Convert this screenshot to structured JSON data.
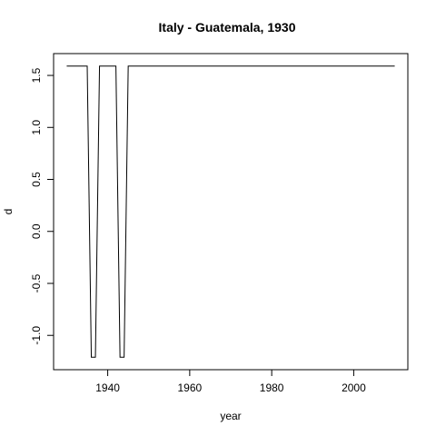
{
  "chart_data": {
    "type": "line",
    "title": "Italy - Guatemala, 1930",
    "xlabel": "year",
    "ylabel": "d",
    "xlim": [
      1926.8,
      2013.2
    ],
    "ylim": [
      -1.33,
      1.71
    ],
    "x_ticks": [
      1940,
      1960,
      1980,
      2000
    ],
    "y_ticks": [
      -1.0,
      -0.5,
      0.0,
      0.5,
      1.0,
      1.5
    ],
    "y_tick_labels": [
      "-1.0",
      "-0.5",
      "0.0",
      "0.5",
      "1.0",
      "1.5"
    ],
    "grid": false,
    "line_color": "#000000",
    "series": [
      {
        "x": [
          1930,
          1935,
          1936,
          1937,
          1938,
          1939,
          1940,
          1941,
          1942,
          1943,
          1944,
          1945,
          1946,
          1950,
          1960,
          1970,
          1980,
          1990,
          2000,
          2010
        ],
        "values": [
          1.59,
          1.59,
          -1.21,
          -1.21,
          1.59,
          1.59,
          1.59,
          1.59,
          1.59,
          -1.21,
          -1.21,
          1.59,
          1.59,
          1.59,
          1.59,
          1.59,
          1.59,
          1.59,
          1.59,
          1.59
        ]
      }
    ]
  }
}
